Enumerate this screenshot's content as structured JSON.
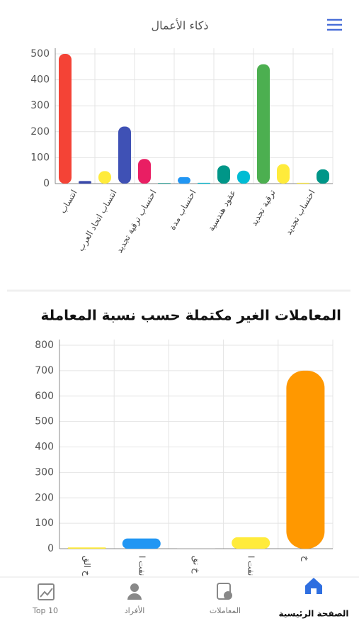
{
  "header": {
    "title": "ذكاء الأعمال"
  },
  "chart_data": [
    {
      "type": "bar",
      "categories": [
        "انتساب",
        "انتساب اتحاد العرب",
        "احتساب ترقية تجديد",
        "احتساب مدة",
        "عقود هندسية",
        "ترقية تجديد",
        "احتساب تجديد"
      ],
      "series": [
        {
          "colors": [
            "#f44336",
            "#ffeb3b",
            "#e91e63",
            "#2196f3",
            "#009688",
            "#4caf50",
            "#ffeb3b"
          ],
          "values": [
            500,
            48,
            95,
            25,
            70,
            460,
            3
          ]
        },
        {
          "colors": [
            "#3949ab",
            "#3f51b5",
            "#009688",
            "#00bcd4",
            "#00bcd4",
            "#ffeb3b",
            "#009688"
          ],
          "values": [
            10,
            220,
            2,
            3,
            50,
            75,
            55
          ]
        }
      ],
      "ylim": [
        0,
        500
      ],
      "yticks": [
        0,
        100,
        200,
        300,
        400,
        500
      ],
      "grid": true
    },
    {
      "type": "bar",
      "title": "المعاملات الغير مكتملة حسب نسبة المعاملة",
      "categories": [
        "خ الق",
        "نفت ا",
        "خ نق",
        "نفت ا",
        "خ"
      ],
      "colors": [
        "#ffeb3b",
        "#2196f3",
        "#bdbdbd",
        "#ffeb3b",
        "#ff9800"
      ],
      "values": [
        5,
        40,
        2,
        45,
        700
      ],
      "ylim": [
        0,
        800
      ],
      "yticks": [
        0,
        100,
        200,
        300,
        400,
        500,
        600,
        700,
        800
      ],
      "grid": true
    }
  ],
  "nav": {
    "items": [
      "Top 10",
      "الأفراد",
      "المعاملات",
      "الصفحة الرئيسية"
    ],
    "active": 3
  }
}
